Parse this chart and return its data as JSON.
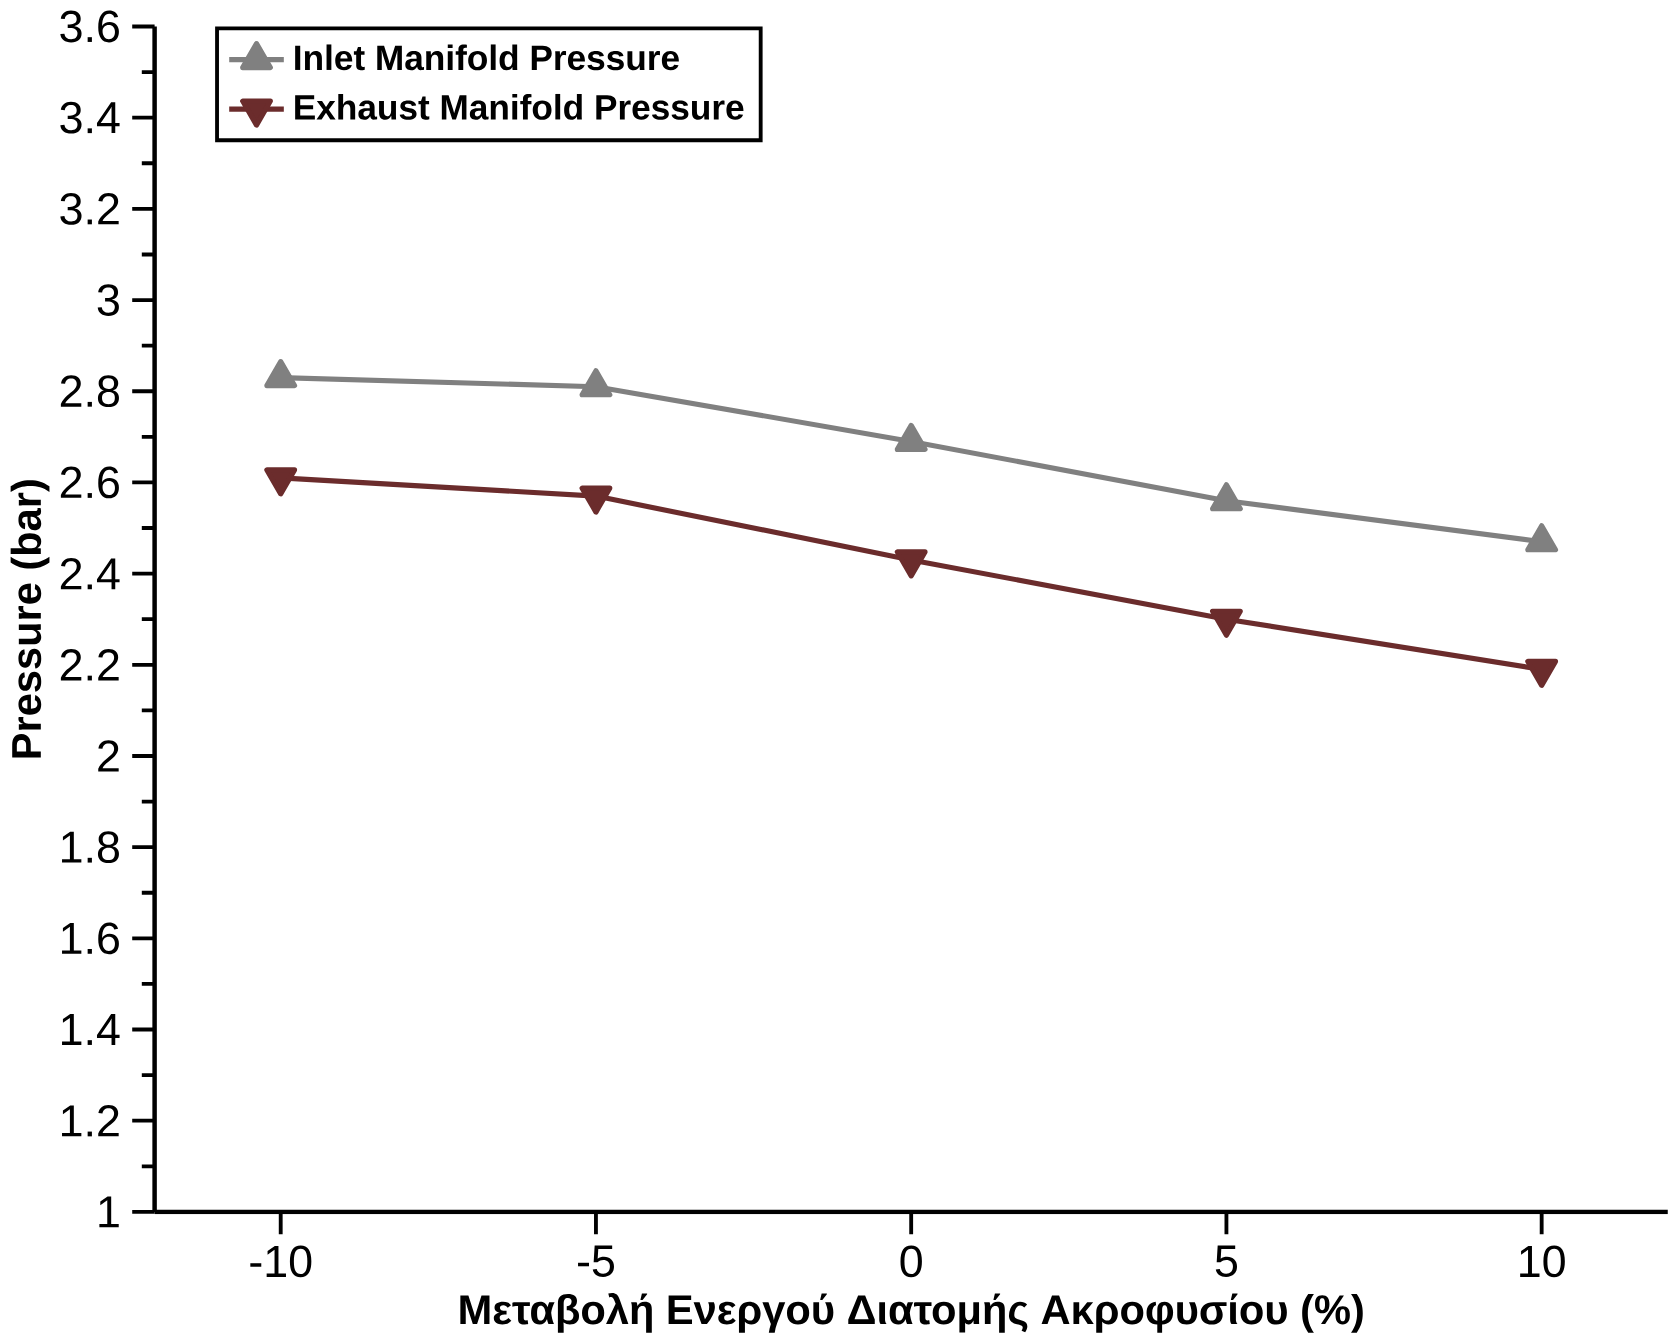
{
  "chart_data": {
    "type": "line",
    "xlabel": "Μεταβολή Ενεργού Διατομής Ακροφυσίου (%)",
    "ylabel": "Pressure (bar)",
    "x": [
      -10,
      -5,
      0,
      5,
      10
    ],
    "series": [
      {
        "name": "Inlet Manifold Pressure",
        "color": "#808080",
        "marker": "triangle",
        "values": [
          2.83,
          2.81,
          2.69,
          2.56,
          2.47
        ]
      },
      {
        "name": "Exhaust Manifold Pressure",
        "color": "#6b2c2c",
        "marker": "triangle down",
        "values": [
          2.61,
          2.57,
          2.43,
          2.3,
          2.19
        ]
      }
    ],
    "xlim": [
      -12,
      12
    ],
    "ylim": [
      1,
      3.6
    ],
    "xticks": [
      -10,
      -5,
      0,
      5,
      10
    ],
    "yticks": [
      1,
      1.2,
      1.4,
      1.6,
      1.8,
      2,
      2.2,
      2.4,
      2.6,
      2.8,
      3,
      3.2,
      3.4,
      3.6
    ],
    "legend": "top left",
    "grid": false,
    "line_style": "solid"
  }
}
